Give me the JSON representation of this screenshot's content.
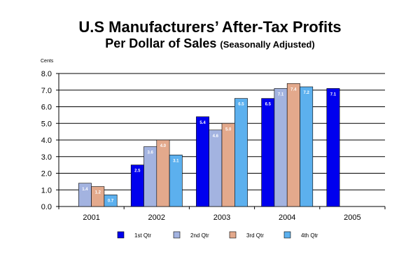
{
  "title_line1": "U.S Manufacturers’ After-Tax Profits",
  "title_line2": "Per Dollar of Sales",
  "title_line2_sub": "(Seasonally Adjusted)",
  "chart_data": {
    "type": "bar",
    "title": "U.S Manufacturers’ After-Tax Profits Per Dollar of Sales (Seasonally Adjusted)",
    "ylabel": "Cents",
    "xlabel": "",
    "ylim": [
      0,
      8
    ],
    "yticks": [
      "0.0",
      "1.0",
      "2.0",
      "3.0",
      "4.0",
      "5.0",
      "6.0",
      "7.0",
      "8.0"
    ],
    "categories": [
      "2001",
      "2002",
      "2003",
      "2004",
      "2005"
    ],
    "grid": true,
    "legend_position": "bottom",
    "series": [
      {
        "name": "1st Qtr",
        "color": "#0000ee",
        "values": [
          null,
          2.5,
          5.4,
          6.5,
          7.1
        ],
        "labels": [
          "",
          "2.5",
          "5.4",
          "6.5",
          "7.1"
        ]
      },
      {
        "name": "2nd Qtr",
        "color": "#a3b3e0",
        "values": [
          1.4,
          3.6,
          4.6,
          7.1,
          null
        ],
        "labels": [
          "1.4",
          "3.6",
          "4.6",
          "7.1",
          ""
        ]
      },
      {
        "name": "3rd Qtr",
        "color": "#e3a98c",
        "values": [
          1.2,
          4.0,
          5.0,
          7.4,
          null
        ],
        "labels": [
          "1.2",
          "4.0",
          "5.0",
          "7.4",
          ""
        ]
      },
      {
        "name": "4th Qtr",
        "color": "#5cb0ee",
        "values": [
          0.7,
          3.1,
          6.5,
          7.2,
          null
        ],
        "labels": [
          "0.7",
          "3.1",
          "6.5",
          "7.2",
          ""
        ]
      }
    ]
  }
}
